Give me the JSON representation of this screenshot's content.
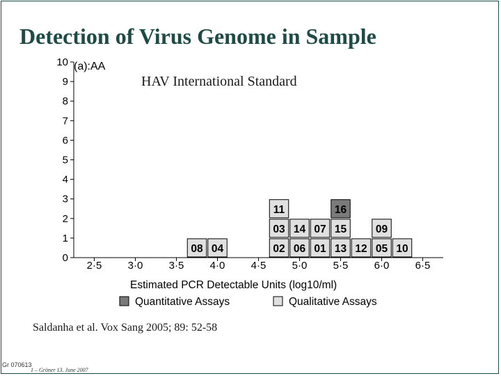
{
  "slide": {
    "title": "Detection of Virus Genome in Sample",
    "subtitle": "HAV International Standard",
    "citation": "Saldanha et al. Vox Sang 2005; 89: 52-58",
    "slide_code": "Gr 070613",
    "footer": "1 – Gröner 13. June 2007"
  },
  "colors": {
    "quantitative": "#7a7a7a",
    "qualitative": "#e0e0e0",
    "axis": "#000000",
    "title": "#1f4b47"
  },
  "chart_data": {
    "type": "bar",
    "subtype": "stacked-labeled-histogram",
    "panel_label": "(a):AA",
    "xlabel": "Estimated PCR Detectable Units (log10/ml)",
    "ylabel": "",
    "xlim": [
      2.25,
      6.75
    ],
    "ylim": [
      0,
      10
    ],
    "x_ticks": [
      "2·5",
      "3·0",
      "3·5",
      "4·0",
      "4·5",
      "5·0",
      "5·5",
      "6·0",
      "6·5"
    ],
    "y_ticks": [
      "0",
      "1",
      "2",
      "3",
      "4",
      "5",
      "6",
      "7",
      "8",
      "9",
      "10"
    ],
    "bin_width": 0.25,
    "legend": [
      {
        "label": "Quantitative Assays",
        "kind": "quantitative"
      },
      {
        "label": "Qualitative Assays",
        "kind": "qualitative"
      }
    ],
    "legend_position": "bottom",
    "grid": false,
    "bins": [
      {
        "x": 3.75,
        "labs": [
          {
            "id": "08",
            "kind": "qualitative"
          }
        ]
      },
      {
        "x": 4.0,
        "labs": [
          {
            "id": "04",
            "kind": "qualitative"
          }
        ]
      },
      {
        "x": 4.75,
        "labs": [
          {
            "id": "02",
            "kind": "qualitative"
          },
          {
            "id": "03",
            "kind": "qualitative"
          },
          {
            "id": "11",
            "kind": "qualitative"
          }
        ]
      },
      {
        "x": 5.0,
        "labs": [
          {
            "id": "06",
            "kind": "qualitative"
          },
          {
            "id": "14",
            "kind": "qualitative"
          }
        ]
      },
      {
        "x": 5.25,
        "labs": [
          {
            "id": "01",
            "kind": "qualitative"
          },
          {
            "id": "07",
            "kind": "qualitative"
          }
        ]
      },
      {
        "x": 5.5,
        "labs": [
          {
            "id": "13",
            "kind": "qualitative"
          },
          {
            "id": "15",
            "kind": "qualitative"
          },
          {
            "id": "16",
            "kind": "quantitative"
          }
        ]
      },
      {
        "x": 5.75,
        "labs": [
          {
            "id": "12",
            "kind": "qualitative"
          }
        ]
      },
      {
        "x": 6.0,
        "labs": [
          {
            "id": "05",
            "kind": "qualitative"
          },
          {
            "id": "09",
            "kind": "qualitative"
          }
        ]
      },
      {
        "x": 6.25,
        "labs": [
          {
            "id": "10",
            "kind": "qualitative"
          }
        ]
      }
    ]
  }
}
